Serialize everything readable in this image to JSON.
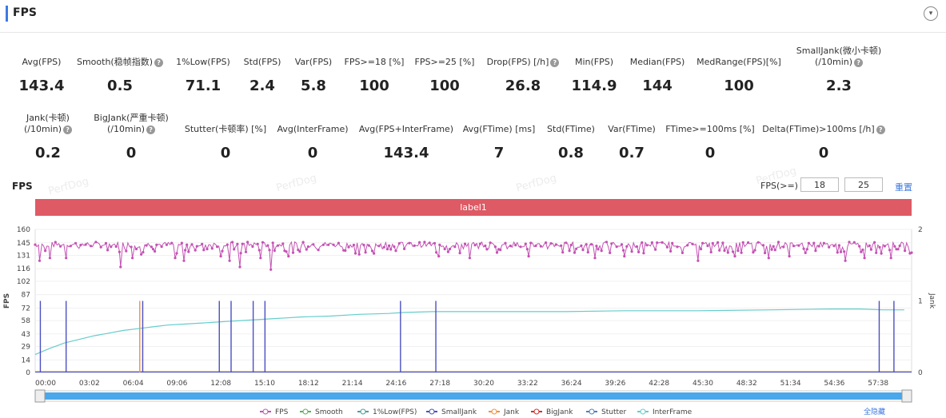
{
  "header": {
    "title": "FPS",
    "collapse_icon": "▾"
  },
  "metrics_row1": [
    {
      "label": "Avg(FPS)",
      "value": "143.4",
      "help": false,
      "cx": 52
    },
    {
      "label": "Smooth(稳帧指数)",
      "value": "0.5",
      "help": true,
      "cx": 150
    },
    {
      "label": "1%Low(FPS)",
      "value": "71.1",
      "help": false,
      "cx": 254
    },
    {
      "label": "Std(FPS)",
      "value": "2.4",
      "help": false,
      "cx": 328
    },
    {
      "label": "Var(FPS)",
      "value": "5.8",
      "help": false,
      "cx": 392
    },
    {
      "label": "FPS>=18 [%]",
      "value": "100",
      "help": false,
      "cx": 468
    },
    {
      "label": "FPS>=25 [%]",
      "value": "100",
      "help": false,
      "cx": 556
    },
    {
      "label": "Drop(FPS) [/h]",
      "value": "26.8",
      "help": true,
      "cx": 654
    },
    {
      "label": "Min(FPS)",
      "value": "114.9",
      "help": false,
      "cx": 743
    },
    {
      "label": "Median(FPS)",
      "value": "144",
      "help": false,
      "cx": 822
    },
    {
      "label": "MedRange(FPS)[%]",
      "value": "100",
      "help": false,
      "cx": 924
    },
    {
      "label": "SmallJank(微小卡顿)",
      "label2": "(/10min)",
      "value": "2.3",
      "help": true,
      "cx": 1049
    }
  ],
  "metrics_row2": [
    {
      "label": "Jank(卡顿)",
      "label2": "(/10min)",
      "value": "0.2",
      "help": true,
      "cx": 60
    },
    {
      "label": "BigJank(严重卡顿)",
      "label2": "(/10min)",
      "value": "0",
      "help": true,
      "cx": 164
    },
    {
      "label": "Stutter(卡顿率) [%]",
      "value": "0",
      "help": false,
      "cx": 282
    },
    {
      "label": "Avg(InterFrame)",
      "value": "0",
      "help": false,
      "cx": 391
    },
    {
      "label": "Avg(FPS+InterFrame)",
      "value": "143.4",
      "help": false,
      "cx": 508
    },
    {
      "label": "Avg(FTime) [ms]",
      "value": "7",
      "help": false,
      "cx": 624
    },
    {
      "label": "Std(FTime)",
      "value": "0.8",
      "help": false,
      "cx": 714
    },
    {
      "label": "Var(FTime)",
      "value": "0.7",
      "help": false,
      "cx": 790
    },
    {
      "label": "FTime>=100ms [%]",
      "value": "0",
      "help": false,
      "cx": 888
    },
    {
      "label": "Delta(FTime)>100ms [/h]",
      "value": "0",
      "help": true,
      "cx": 1030
    }
  ],
  "controls": {
    "chart_label": "FPS",
    "fps_ge_label": "FPS(>=)",
    "fps_ge_1": "18",
    "fps_ge_2": "25",
    "reset_label": "重置"
  },
  "label_bar": "label1",
  "watermark": "PerfDog",
  "legend": [
    {
      "name": "FPS",
      "color": "#c452b4"
    },
    {
      "name": "Smooth",
      "color": "#5ab05a"
    },
    {
      "name": "1%Low(FPS)",
      "color": "#4a9f9f"
    },
    {
      "name": "SmallJank",
      "color": "#4a4fc4"
    },
    {
      "name": "Jank",
      "color": "#f0913c"
    },
    {
      "name": "BigJank",
      "color": "#cc3333"
    },
    {
      "name": "Stutter",
      "color": "#4a7fc4"
    },
    {
      "name": "InterFrame",
      "color": "#66cccc"
    }
  ],
  "legend_toggle": "全隐藏",
  "chart_data": {
    "type": "line",
    "ylabel": "FPS",
    "y2label": "Jank",
    "y_ticks": [
      0,
      14,
      29,
      43,
      58,
      72,
      87,
      102,
      116,
      131,
      145,
      160
    ],
    "y2_ticks": [
      0,
      1,
      2
    ],
    "ylim": [
      0,
      160
    ],
    "y2lim": [
      0,
      2
    ],
    "x_ticks": [
      "00:00",
      "03:02",
      "06:04",
      "09:06",
      "12:08",
      "15:10",
      "18:12",
      "21:14",
      "24:16",
      "27:18",
      "30:20",
      "33:22",
      "36:24",
      "39:26",
      "42:28",
      "45:30",
      "48:32",
      "51:34",
      "54:36",
      "57:38"
    ],
    "fps_base": 143,
    "fps_dips": [
      [
        0.3,
        125
      ],
      [
        1.0,
        128
      ],
      [
        2.1,
        128
      ],
      [
        5.8,
        118
      ],
      [
        6.6,
        128
      ],
      [
        7.2,
        132
      ],
      [
        9.5,
        128
      ],
      [
        10.1,
        125
      ],
      [
        12.6,
        130
      ],
      [
        13.2,
        125
      ],
      [
        13.9,
        118
      ],
      [
        15.3,
        128
      ],
      [
        16.0,
        115
      ],
      [
        17.2,
        130
      ],
      [
        22.0,
        132
      ],
      [
        27.4,
        130
      ],
      [
        29.5,
        128
      ],
      [
        33.5,
        130
      ],
      [
        38.0,
        128
      ],
      [
        40.0,
        130
      ],
      [
        45.0,
        125
      ],
      [
        47.5,
        130
      ],
      [
        49.8,
        128
      ],
      [
        51.2,
        130
      ],
      [
        55.0,
        125
      ],
      [
        56.3,
        128
      ],
      [
        58.1,
        128
      ]
    ],
    "interframe": [
      [
        0,
        20
      ],
      [
        1,
        27
      ],
      [
        2,
        33
      ],
      [
        3,
        37
      ],
      [
        4,
        41
      ],
      [
        5,
        44
      ],
      [
        6,
        47
      ],
      [
        7,
        49
      ],
      [
        8,
        51
      ],
      [
        9,
        53
      ],
      [
        10,
        54
      ],
      [
        11,
        55
      ],
      [
        12,
        56
      ],
      [
        13,
        57
      ],
      [
        14,
        58
      ],
      [
        15,
        59
      ],
      [
        16,
        60
      ],
      [
        17,
        61
      ],
      [
        18,
        62
      ],
      [
        20,
        63
      ],
      [
        22,
        65
      ],
      [
        24,
        66
      ],
      [
        25,
        67
      ],
      [
        27,
        68
      ],
      [
        30,
        68
      ],
      [
        33,
        68
      ],
      [
        36,
        68
      ],
      [
        40,
        69
      ],
      [
        45,
        69
      ],
      [
        50,
        70
      ],
      [
        54,
        71
      ],
      [
        56,
        71
      ],
      [
        57.5,
        70
      ],
      [
        59,
        70
      ]
    ],
    "smalljank": [
      [
        0.35,
        1
      ],
      [
        2.1,
        1
      ],
      [
        7.3,
        1
      ],
      [
        12.5,
        1
      ],
      [
        13.3,
        1
      ],
      [
        14.8,
        1
      ],
      [
        15.6,
        1
      ],
      [
        24.8,
        1
      ],
      [
        27.2,
        1
      ],
      [
        57.3,
        1
      ],
      [
        58.3,
        1
      ]
    ],
    "jank": [
      [
        7.1,
        1
      ]
    ],
    "x_max": 59.5
  }
}
